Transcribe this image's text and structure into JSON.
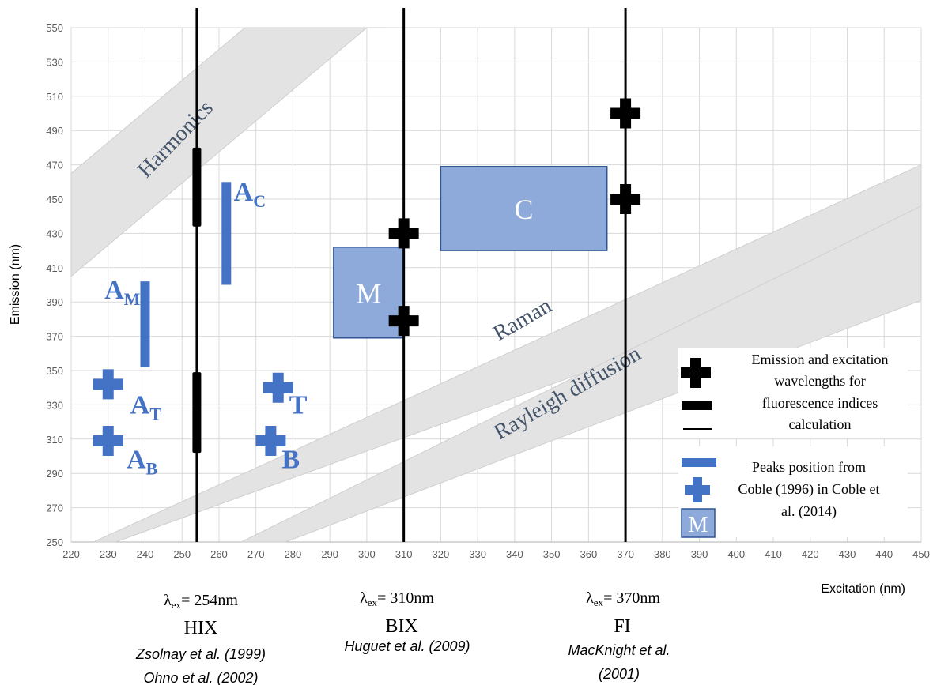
{
  "chart_data": {
    "type": "scatter",
    "xlabel": "Excitation (nm)",
    "ylabel": "Emission (nm)",
    "xlim": [
      220,
      450
    ],
    "ylim": [
      250,
      550
    ],
    "x_ticks": [
      220,
      230,
      240,
      250,
      260,
      270,
      280,
      290,
      300,
      310,
      320,
      330,
      340,
      350,
      360,
      370,
      380,
      390,
      400,
      410,
      420,
      430,
      440,
      450
    ],
    "y_ticks": [
      250,
      270,
      290,
      310,
      330,
      350,
      370,
      390,
      410,
      430,
      450,
      470,
      490,
      510,
      530,
      550
    ],
    "grid": true,
    "bands": [
      {
        "name": "Harmonics",
        "label": "Harmonics",
        "color": "#e3e3e3",
        "polygon": [
          [
            220,
            405
          ],
          [
            220,
            465
          ],
          [
            267,
            550
          ],
          [
            305,
            550
          ],
          [
            300,
            550
          ]
        ]
      },
      {
        "name": "Raman",
        "label": "Raman",
        "color": "#e3e3e3",
        "polygon": [
          [
            226,
            250
          ],
          [
            232,
            250
          ],
          [
            450,
            420
          ],
          [
            450,
            470
          ]
        ]
      },
      {
        "name": "Rayleigh",
        "label": "Rayleigh diffusion",
        "color": "#e3e3e3",
        "polygon": [
          [
            266,
            250
          ],
          [
            278,
            250
          ],
          [
            450,
            391
          ],
          [
            450,
            446
          ]
        ]
      }
    ],
    "vertical_lines": [
      {
        "name": "hix-line",
        "x": 254
      },
      {
        "name": "bix-line",
        "x": 310
      },
      {
        "name": "fi-line",
        "x": 370
      }
    ],
    "index_bars": [
      {
        "name": "hix-bar-high",
        "x": 254,
        "y1": 434,
        "y2": 480
      },
      {
        "name": "hix-bar-low",
        "x": 254,
        "y1": 302,
        "y2": 349
      }
    ],
    "index_crosses": [
      {
        "name": "bix-cross-430",
        "x": 310,
        "y": 430
      },
      {
        "name": "bix-cross-380",
        "x": 310,
        "y": 379
      },
      {
        "name": "fi-cross-500",
        "x": 370,
        "y": 500
      },
      {
        "name": "fi-cross-450",
        "x": 370,
        "y": 450
      }
    ],
    "peak_bars": [
      {
        "name": "peak-ac-bar",
        "x": 262,
        "y1": 400,
        "y2": 460
      },
      {
        "name": "peak-am-bar",
        "x": 240,
        "y1": 352,
        "y2": 402
      }
    ],
    "peak_crosses": [
      {
        "name": "peak-at-cross",
        "x": 230,
        "y": 342
      },
      {
        "name": "peak-ab-cross",
        "x": 230,
        "y": 309
      },
      {
        "name": "peak-t-cross",
        "x": 276,
        "y": 340
      },
      {
        "name": "peak-b-cross",
        "x": 274,
        "y": 309
      }
    ],
    "peak_boxes": [
      {
        "name": "peak-m-box",
        "label": "M",
        "x1": 291,
        "x2": 310,
        "y1": 369,
        "y2": 422
      },
      {
        "name": "peak-c-box",
        "label": "C",
        "x1": 320,
        "x2": 365,
        "y1": 420,
        "y2": 469
      }
    ],
    "peak_labels": [
      {
        "name": "label-ac",
        "main": "A",
        "sub": "C",
        "x": 264,
        "y": 449
      },
      {
        "name": "label-am",
        "main": "A",
        "sub": "M",
        "x": 229,
        "y": 392
      },
      {
        "name": "label-at",
        "main": "A",
        "sub": "T",
        "x": 236,
        "y": 325
      },
      {
        "name": "label-ab",
        "main": "A",
        "sub": "B",
        "x": 235,
        "y": 293
      },
      {
        "name": "label-t",
        "main": "T",
        "sub": "",
        "x": 279,
        "y": 325
      },
      {
        "name": "label-b",
        "main": "B",
        "sub": "",
        "x": 277,
        "y": 293
      }
    ]
  },
  "legend": {
    "item1_lines": [
      "Emission and excitation",
      "wavelengths for",
      "fluorescence indices",
      "calculation"
    ],
    "item2_lines": [
      "Peaks position from",
      "Coble (1996) in Coble et",
      "al. (2014)"
    ],
    "box_label": "M"
  },
  "indices": [
    {
      "name": "hix",
      "lambda_prefix": "λ",
      "lambda_sub": "ex",
      "lambda_value": "= 254nm",
      "index": "HIX",
      "refs": [
        "Zsolnay et al. (1999)",
        "Ohno et al. (2002)"
      ]
    },
    {
      "name": "bix",
      "lambda_prefix": "λ",
      "lambda_sub": "ex",
      "lambda_value": "= 310nm",
      "index": "BIX",
      "refs": [
        "Huguet et al. (2009)"
      ]
    },
    {
      "name": "fi",
      "lambda_prefix": "λ",
      "lambda_sub": "ex",
      "lambda_value": "= 370nm",
      "index": "FI",
      "refs": [
        "MacKnight et al.",
        "(2001)"
      ]
    }
  ],
  "colors": {
    "peak": "#4472c4",
    "box_fill": "#8eaadb",
    "box_stroke": "#2f5597",
    "band": "#e3e3e3",
    "band_label": "#44546a",
    "grid": "#d9d9d9",
    "index": "#000000"
  }
}
